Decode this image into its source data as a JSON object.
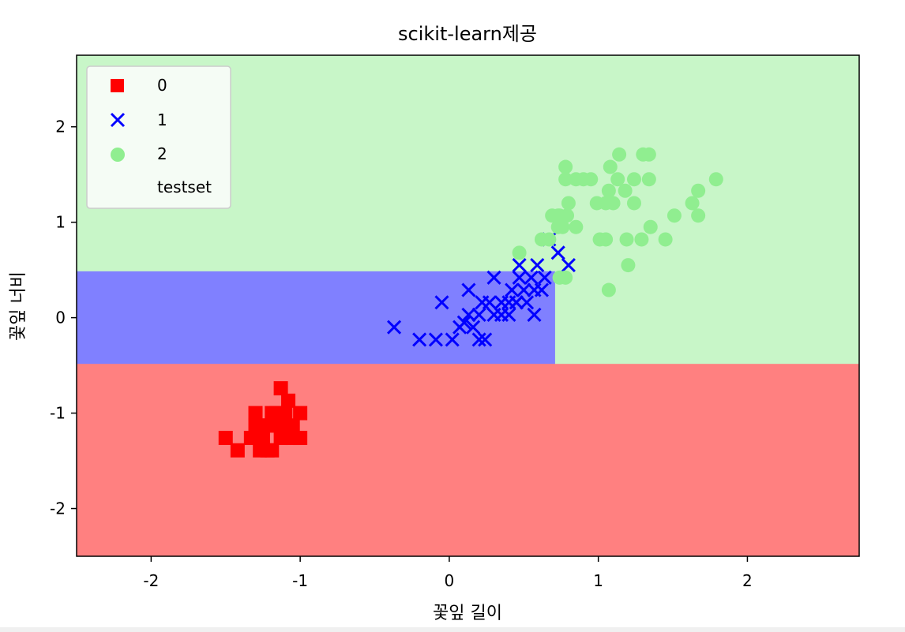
{
  "chart_data": {
    "type": "scatter",
    "title": "scikit-learn제공",
    "xlabel": "꽃잎 길이",
    "ylabel": "꽃잎 너비",
    "xlim": [
      -2.5,
      2.75
    ],
    "ylim": [
      -2.5,
      2.75
    ],
    "xticks": [
      -2,
      -1,
      0,
      1,
      2
    ],
    "yticks": [
      -2,
      -1,
      0,
      1,
      2
    ],
    "tick_labels_x": [
      "-2",
      "-1",
      "0",
      "1",
      "2"
    ],
    "tick_labels_y": [
      "-2",
      "-1",
      "0",
      "1",
      "2"
    ],
    "grid": false,
    "legend_placement": "top-left",
    "legend": [
      {
        "label": "0",
        "marker": "square",
        "color": "#ff0000"
      },
      {
        "label": "1",
        "marker": "x",
        "color": "#0000ff"
      },
      {
        "label": "2",
        "marker": "circle",
        "color": "#90ee90"
      },
      {
        "label": "testset",
        "marker": "none",
        "color": "#ffffff"
      }
    ],
    "decision_regions": [
      {
        "class": "0",
        "color": "#ff8080",
        "x": [
          -2.5,
          2.75
        ],
        "y": [
          -2.5,
          -0.48
        ]
      },
      {
        "class": "1",
        "color": "#8080ff",
        "x": [
          -2.5,
          0.71
        ],
        "y": [
          -0.48,
          0.49
        ]
      },
      {
        "class": "2",
        "color": "#c8f6c8",
        "x": [
          0.71,
          2.75
        ],
        "y": [
          -0.48,
          0.49
        ]
      },
      {
        "class": "2",
        "color": "#c8f6c8",
        "x": [
          -2.5,
          2.75
        ],
        "y": [
          0.49,
          2.75
        ]
      }
    ],
    "series": [
      {
        "name": "0",
        "marker": "square",
        "color": "#ff0000",
        "points": [
          [
            -1.5,
            -1.26
          ],
          [
            -1.42,
            -1.39
          ],
          [
            -1.33,
            -1.26
          ],
          [
            -1.3,
            -1.0
          ],
          [
            -1.27,
            -1.13
          ],
          [
            -1.25,
            -1.26
          ],
          [
            -1.22,
            -1.39
          ],
          [
            -1.19,
            -1.0
          ],
          [
            -1.16,
            -1.13
          ],
          [
            -1.13,
            -1.26
          ],
          [
            -1.1,
            -1.0
          ],
          [
            -1.08,
            -0.87
          ],
          [
            -1.13,
            -0.74
          ],
          [
            -1.19,
            -1.39
          ],
          [
            -1.27,
            -1.39
          ],
          [
            -1.05,
            -1.26
          ],
          [
            -1.0,
            -1.0
          ],
          [
            -1.0,
            -1.26
          ],
          [
            -1.22,
            -1.13
          ],
          [
            -1.3,
            -1.13
          ],
          [
            -1.16,
            -1.0
          ],
          [
            -1.1,
            -1.13
          ],
          [
            -1.05,
            -1.13
          ]
        ]
      },
      {
        "name": "1",
        "marker": "x",
        "color": "#0000ff",
        "points": [
          [
            -0.37,
            -0.1
          ],
          [
            -0.2,
            -0.23
          ],
          [
            -0.09,
            -0.23
          ],
          [
            0.02,
            -0.23
          ],
          [
            -0.05,
            0.16
          ],
          [
            0.07,
            -0.1
          ],
          [
            0.1,
            -0.05
          ],
          [
            0.13,
            0.03
          ],
          [
            0.16,
            -0.1
          ],
          [
            0.13,
            0.29
          ],
          [
            0.2,
            -0.23
          ],
          [
            0.24,
            -0.23
          ],
          [
            0.22,
            0.16
          ],
          [
            0.27,
            0.16
          ],
          [
            0.3,
            0.03
          ],
          [
            0.3,
            0.42
          ],
          [
            0.35,
            0.16
          ],
          [
            0.4,
            0.16
          ],
          [
            0.4,
            0.03
          ],
          [
            0.42,
            0.29
          ],
          [
            0.45,
            0.16
          ],
          [
            0.47,
            0.42
          ],
          [
            0.47,
            0.55
          ],
          [
            0.5,
            0.29
          ],
          [
            0.52,
            0.16
          ],
          [
            0.55,
            0.42
          ],
          [
            0.57,
            0.29
          ],
          [
            0.59,
            0.55
          ],
          [
            0.57,
            0.03
          ],
          [
            0.62,
            0.29
          ],
          [
            0.64,
            0.42
          ],
          [
            0.67,
            0.82
          ],
          [
            0.73,
            0.68
          ],
          [
            0.8,
            0.55
          ],
          [
            0.2,
            0.03
          ],
          [
            0.35,
            0.03
          ],
          [
            0.45,
            0.16
          ]
        ]
      },
      {
        "name": "2",
        "marker": "circle",
        "color": "#90ee90",
        "points": [
          [
            0.47,
            0.68
          ],
          [
            0.62,
            0.82
          ],
          [
            0.67,
            0.82
          ],
          [
            0.69,
            1.07
          ],
          [
            0.74,
            1.07
          ],
          [
            0.76,
            0.95
          ],
          [
            0.79,
            1.07
          ],
          [
            0.8,
            1.2
          ],
          [
            0.85,
            0.95
          ],
          [
            0.78,
            1.45
          ],
          [
            0.78,
            1.58
          ],
          [
            0.85,
            1.45
          ],
          [
            0.9,
            1.45
          ],
          [
            0.95,
            1.45
          ],
          [
            0.99,
            1.2
          ],
          [
            1.01,
            0.82
          ],
          [
            1.05,
            0.82
          ],
          [
            1.05,
            1.2
          ],
          [
            1.07,
            1.33
          ],
          [
            1.08,
            1.58
          ],
          [
            1.1,
            1.2
          ],
          [
            1.13,
            1.45
          ],
          [
            1.14,
            1.71
          ],
          [
            1.18,
            1.33
          ],
          [
            1.2,
            0.55
          ],
          [
            1.19,
            0.82
          ],
          [
            1.24,
            1.45
          ],
          [
            1.24,
            1.2
          ],
          [
            1.29,
            0.82
          ],
          [
            1.3,
            1.71
          ],
          [
            1.34,
            1.71
          ],
          [
            1.34,
            1.45
          ],
          [
            1.35,
            0.95
          ],
          [
            1.45,
            0.82
          ],
          [
            1.51,
            1.07
          ],
          [
            1.63,
            1.2
          ],
          [
            1.67,
            1.07
          ],
          [
            1.67,
            1.33
          ],
          [
            1.79,
            1.45
          ],
          [
            1.07,
            0.29
          ],
          [
            0.74,
            0.42
          ],
          [
            0.78,
            0.42
          ],
          [
            0.73,
            0.95
          ],
          [
            0.73,
            1.07
          ]
        ]
      }
    ]
  }
}
